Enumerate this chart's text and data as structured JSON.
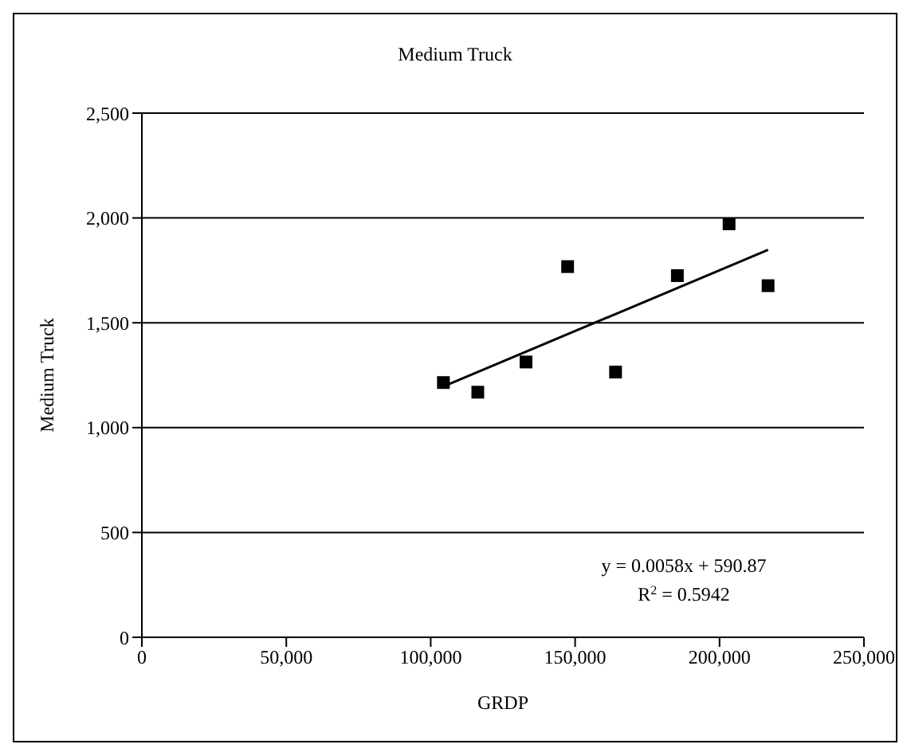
{
  "chart_data": {
    "type": "scatter",
    "title": "Medium Truck",
    "xlabel": "GRDP",
    "ylabel": "Medium Truck",
    "xlim": [
      0,
      250000
    ],
    "xticks": [
      {
        "value": 0,
        "label": "0"
      },
      {
        "value": 50000,
        "label": "50,000"
      },
      {
        "value": 100000,
        "label": "100,000"
      },
      {
        "value": 150000,
        "label": "150,000"
      },
      {
        "value": 200000,
        "label": "200,000"
      },
      {
        "value": 250000,
        "label": "250,000"
      }
    ],
    "ylim": [
      0,
      2500
    ],
    "yticks": [
      {
        "value": 0,
        "label": "0"
      },
      {
        "value": 500,
        "label": "500"
      },
      {
        "value": 1000,
        "label": "1,000"
      },
      {
        "value": 1500,
        "label": "1,500"
      },
      {
        "value": 2000,
        "label": "2,000"
      },
      {
        "value": 2500,
        "label": "2,500"
      }
    ],
    "grid": "y",
    "series": [
      {
        "marker": "square",
        "color": "#000000",
        "x": [
          104400,
          116300,
          133000,
          147400,
          164000,
          185400,
          203300,
          216800
        ],
        "values": [
          1215,
          1169,
          1313,
          1768,
          1265,
          1725,
          1972,
          1677
        ]
      },
      {
        "type": "line",
        "marker": "none",
        "color": "#000000",
        "x": [
          104400,
          216800
        ],
        "values": [
          1196,
          1848
        ]
      }
    ],
    "annotations": [
      "y = 0.0058x + 590.87",
      "R$^{2}$ = 0.5942"
    ]
  }
}
